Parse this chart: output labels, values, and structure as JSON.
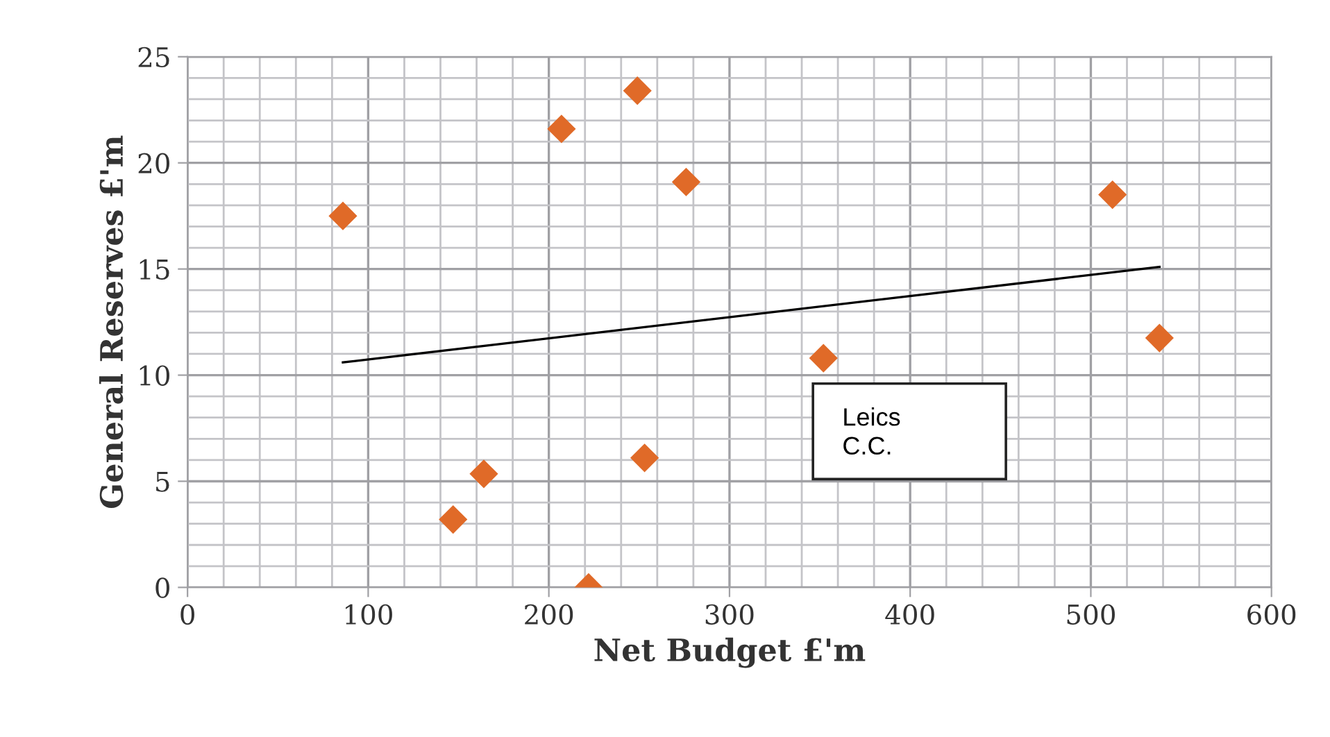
{
  "chart_data": {
    "type": "scatter",
    "xlabel": "Net Budget £'m",
    "ylabel": "General Reserves £'m",
    "series": [
      {
        "color": "#e06a28",
        "marker": "diamond",
        "x": [
          86,
          147,
          164,
          207,
          222,
          249,
          253,
          276,
          352,
          512,
          538
        ],
        "values": [
          17.5,
          3.2,
          5.35,
          21.6,
          0,
          23.4,
          6.1,
          19.1,
          10.8,
          18.5,
          11.75
        ]
      },
      {
        "type": "line",
        "color": "#000000",
        "marker": "none",
        "line_style": "solid",
        "x": [
          86,
          538
        ],
        "values": [
          10.6,
          15.1
        ]
      }
    ],
    "annotations": [
      "Leics\nC.C."
    ],
    "xlim": [
      0,
      600
    ],
    "xticks": [
      0,
      100,
      200,
      300,
      400,
      500,
      600
    ],
    "ylim": [
      0,
      25
    ],
    "yticks": [
      0,
      5,
      10,
      15,
      20,
      25
    ],
    "grid": true,
    "legend": false
  }
}
